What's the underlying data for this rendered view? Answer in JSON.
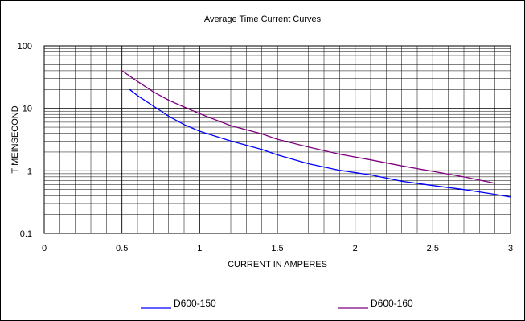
{
  "chart_data": {
    "type": "line",
    "title": "Average Time Current Curves",
    "xlabel": "CURRENT IN AMPERES",
    "ylabel": "TIMEINSECOND",
    "xlim": [
      0,
      3
    ],
    "ylim": [
      0.1,
      100
    ],
    "yscale": "log",
    "grid": true,
    "legend_position": "bottom",
    "x_ticks": [
      "0",
      "0.5",
      "1",
      "1.5",
      "2",
      "2.5",
      "3"
    ],
    "y_ticks": [
      "0.1",
      "1",
      "10",
      "100"
    ],
    "series": [
      {
        "name": "D600-150",
        "color": "#0000ff",
        "x": [
          0.55,
          0.6,
          0.7,
          0.8,
          0.9,
          1.0,
          1.2,
          1.4,
          1.5,
          1.7,
          1.9,
          2.1,
          2.3,
          2.5,
          2.7,
          2.9,
          3.0
        ],
        "y": [
          20,
          16,
          11,
          7.5,
          5.5,
          4.3,
          3.0,
          2.2,
          1.8,
          1.3,
          1.02,
          0.86,
          0.68,
          0.58,
          0.5,
          0.42,
          0.38
        ]
      },
      {
        "name": "D600-160",
        "color": "#800080",
        "x": [
          0.5,
          0.6,
          0.7,
          0.8,
          0.9,
          1.0,
          1.2,
          1.4,
          1.5,
          1.7,
          1.9,
          2.1,
          2.3,
          2.5,
          2.7,
          2.9
        ],
        "y": [
          40,
          27,
          18.5,
          13.5,
          10.5,
          8.2,
          5.3,
          3.9,
          3.2,
          2.4,
          1.85,
          1.5,
          1.2,
          0.98,
          0.8,
          0.63
        ]
      }
    ]
  }
}
